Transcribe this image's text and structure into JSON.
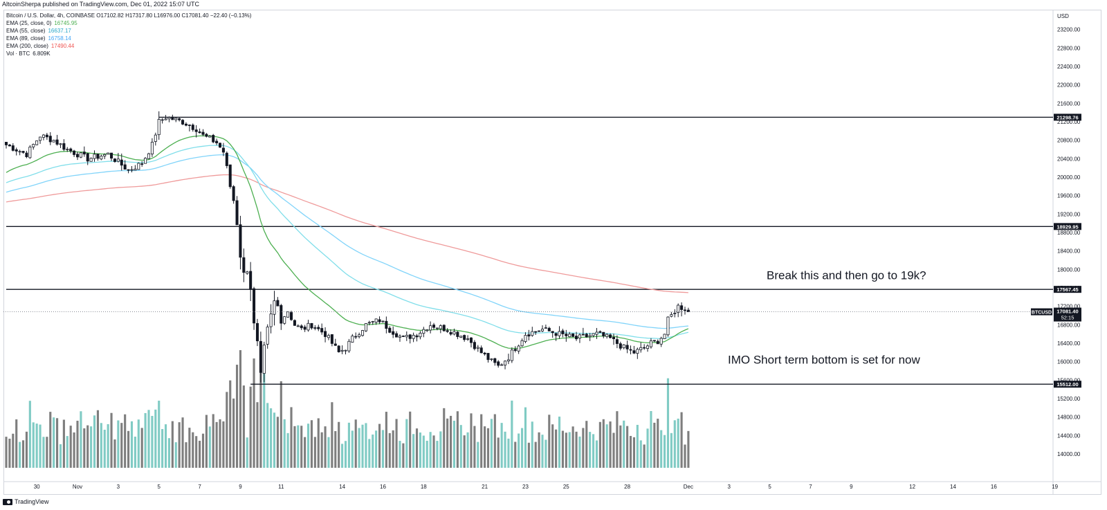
{
  "header": {
    "published_by": "AltcoinSherpa published on TradingView.com, Dec 01, 2022 15:07 UTC",
    "ohlc_line": "Bitcoin / U.S. Dollar, 4h, COINBASE O17102.82 H17317.80 L16976.00 C17081.40 −22.40 (−0.13%)"
  },
  "legend": [
    {
      "label": "EMA (25, close, 0)",
      "value": "16745.95",
      "color": "#4caf50"
    },
    {
      "label": "EMA (55, close)",
      "value": "16637.17",
      "color": "#26a6c8"
    },
    {
      "label": "EMA (89, close)",
      "value": "16758.14",
      "color": "#64b5f6"
    },
    {
      "label": "EMA (200, close)",
      "value": "17490.44",
      "color": "#ef5350"
    },
    {
      "label": "Vol · BTC",
      "value": "6.809K",
      "color": "#131722"
    }
  ],
  "footer": {
    "brand": "TradingView"
  },
  "colors": {
    "up": "#ffffff",
    "down": "#131722",
    "vol_up": "#80cbc4",
    "vol_down": "#7e7e7e",
    "ema25": "#4caf50",
    "ema55": "#80deea",
    "ema89": "#81d4fa",
    "ema200": "#ef9a9a"
  },
  "chart_data": {
    "type": "candlestick",
    "symbol": "BTCUSD",
    "timeframe": "4h",
    "currency": "USD",
    "ylim": [
      13700,
      23600
    ],
    "y_ticks": [
      "23200.00",
      "22800.00",
      "22400.00",
      "22000.00",
      "21600.00",
      "21200.00",
      "20800.00",
      "20400.00",
      "20000.00",
      "19600.00",
      "19200.00",
      "18800.00",
      "18400.00",
      "18000.00",
      "17600.00",
      "17200.00",
      "16800.00",
      "16400.00",
      "16000.00",
      "15600.00",
      "15200.00",
      "14800.00",
      "14400.00",
      "14000.00"
    ],
    "x_ticks": [
      {
        "label": "28",
        "bar": -3
      },
      {
        "label": "30",
        "bar": 9
      },
      {
        "label": "Nov",
        "bar": 21
      },
      {
        "label": "3",
        "bar": 33
      },
      {
        "label": "5",
        "bar": 45
      },
      {
        "label": "7",
        "bar": 57
      },
      {
        "label": "9",
        "bar": 69
      },
      {
        "label": "11",
        "bar": 81
      },
      {
        "label": "14",
        "bar": 99
      },
      {
        "label": "16",
        "bar": 111
      },
      {
        "label": "18",
        "bar": 123
      },
      {
        "label": "21",
        "bar": 141
      },
      {
        "label": "23",
        "bar": 153
      },
      {
        "label": "25",
        "bar": 165
      },
      {
        "label": "28",
        "bar": 183
      },
      {
        "label": "Dec",
        "bar": 201
      },
      {
        "label": "3",
        "bar": 213
      },
      {
        "label": "5",
        "bar": 225
      },
      {
        "label": "7",
        "bar": 237
      },
      {
        "label": "9",
        "bar": 249
      },
      {
        "label": "12",
        "bar": 267
      },
      {
        "label": "14",
        "bar": 279
      },
      {
        "label": "16",
        "bar": 291
      },
      {
        "label": "19",
        "bar": 309
      }
    ],
    "close_anchors": [
      [
        0,
        20700
      ],
      [
        6,
        20500
      ],
      [
        10,
        20900
      ],
      [
        14,
        20800
      ],
      [
        18,
        20600
      ],
      [
        24,
        20400
      ],
      [
        30,
        20500
      ],
      [
        36,
        20150
      ],
      [
        40,
        20300
      ],
      [
        43,
        20700
      ],
      [
        45,
        21200
      ],
      [
        47,
        21300
      ],
      [
        52,
        21200
      ],
      [
        56,
        21050
      ],
      [
        58,
        20900
      ],
      [
        62,
        20750
      ],
      [
        64,
        20550
      ],
      [
        65,
        20200
      ],
      [
        66,
        19800
      ],
      [
        67,
        19500
      ],
      [
        68,
        19000
      ],
      [
        69,
        18300
      ],
      [
        70,
        17900
      ],
      [
        71,
        18000
      ],
      [
        72,
        17600
      ],
      [
        73,
        16800
      ],
      [
        74,
        16400
      ],
      [
        75,
        15700
      ],
      [
        76,
        16300
      ],
      [
        77,
        16700
      ],
      [
        78,
        17000
      ],
      [
        79,
        17300
      ],
      [
        80,
        17200
      ],
      [
        81,
        16900
      ],
      [
        83,
        17100
      ],
      [
        85,
        16800
      ],
      [
        87,
        16700
      ],
      [
        90,
        16800
      ],
      [
        94,
        16600
      ],
      [
        98,
        16200
      ],
      [
        100,
        16300
      ],
      [
        102,
        16500
      ],
      [
        106,
        16800
      ],
      [
        110,
        16900
      ],
      [
        113,
        16700
      ],
      [
        117,
        16500
      ],
      [
        121,
        16600
      ],
      [
        125,
        16800
      ],
      [
        130,
        16700
      ],
      [
        136,
        16500
      ],
      [
        140,
        16200
      ],
      [
        143,
        16000
      ],
      [
        145,
        15900
      ],
      [
        148,
        16100
      ],
      [
        150,
        16300
      ],
      [
        153,
        16600
      ],
      [
        158,
        16700
      ],
      [
        163,
        16600
      ],
      [
        168,
        16500
      ],
      [
        174,
        16600
      ],
      [
        178,
        16500
      ],
      [
        182,
        16300
      ],
      [
        185,
        16200
      ],
      [
        188,
        16300
      ],
      [
        190,
        16400
      ],
      [
        192,
        16450
      ],
      [
        194,
        16600
      ],
      [
        195,
        16900
      ],
      [
        197,
        17100
      ],
      [
        198,
        17200
      ],
      [
        200,
        17150
      ],
      [
        201,
        17081.4
      ]
    ],
    "overlays": {
      "ema25_last": 16745.95,
      "ema55_last": 16637.17,
      "ema89_last": 16758.14,
      "ema200_last": 17490.44
    },
    "horizontal_levels": [
      {
        "price": 21298.76,
        "label": "21298.76",
        "from_bar": 45
      },
      {
        "price": 18929.95,
        "label": "18929.95",
        "from_bar": 0
      },
      {
        "price": 17567.45,
        "label": "17567.45",
        "from_bar": 0
      },
      {
        "price": 15512.0,
        "label": "15512.00",
        "from_bar": 72
      }
    ],
    "last_price": {
      "symbol": "BTCUSD",
      "price": "17081.40",
      "countdown": "52:15"
    },
    "annotations": [
      {
        "text": "Break this and then go to 19k?",
        "price": 17880
      },
      {
        "text": "IMO Short term bottom is set for now",
        "price": 16050
      }
    ]
  }
}
